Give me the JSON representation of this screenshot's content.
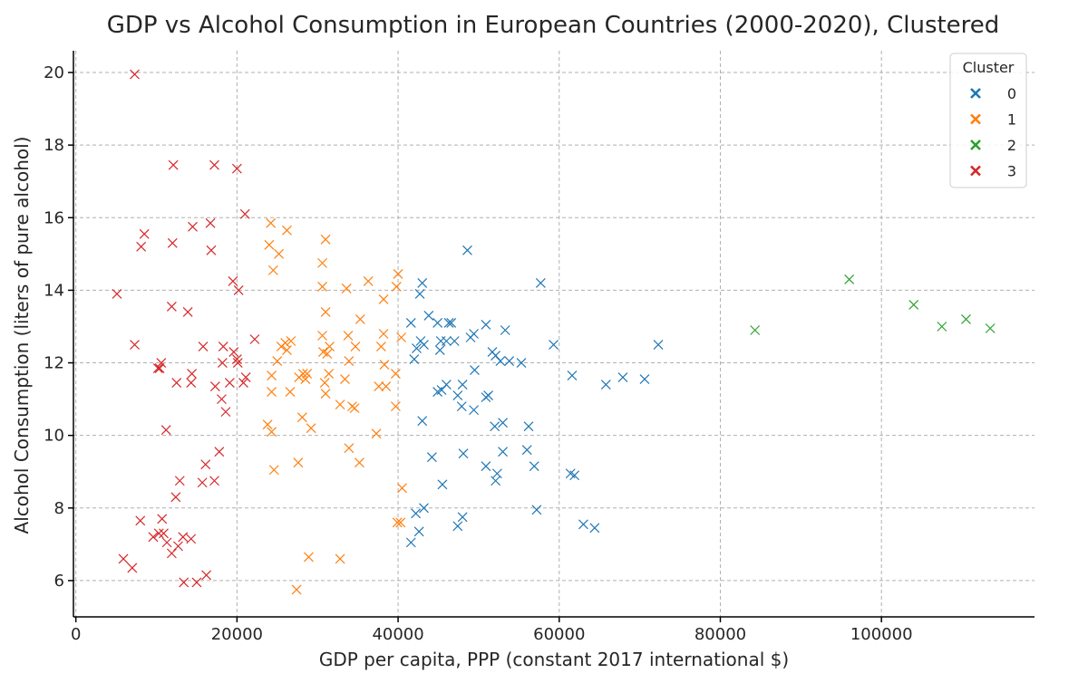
{
  "chart_data": {
    "type": "scatter",
    "title": "GDP vs Alcohol Consumption in European Countries (2000-2020), Clustered",
    "xlabel": "GDP per capita, PPP (constant 2017 international $)",
    "ylabel": "Alcohol Consumption (liters of pure alcohol)",
    "xlim": [
      -300,
      119000
    ],
    "ylim": [
      5.0,
      20.6
    ],
    "xticks": [
      0,
      20000,
      40000,
      60000,
      80000,
      100000
    ],
    "xtick_labels": [
      "0",
      "20000",
      "40000",
      "60000",
      "80000",
      "100000"
    ],
    "yticks": [
      6,
      8,
      10,
      12,
      14,
      16,
      18,
      20
    ],
    "ytick_labels": [
      "6",
      "8",
      "10",
      "12",
      "14",
      "16",
      "18",
      "20"
    ],
    "grid": true,
    "marker": "x",
    "legend": {
      "title": "Cluster",
      "position": "top-right"
    },
    "series": [
      {
        "name": "0",
        "color": "#1f77b4",
        "points": [
          [
            48600,
            15.1
          ],
          [
            57700,
            14.2
          ],
          [
            43000,
            14.2
          ],
          [
            42700,
            13.9
          ],
          [
            43800,
            13.3
          ],
          [
            41600,
            13.1
          ],
          [
            44900,
            13.1
          ],
          [
            46300,
            13.1
          ],
          [
            46600,
            13.1
          ],
          [
            50900,
            13.05
          ],
          [
            53300,
            12.9
          ],
          [
            49400,
            12.8
          ],
          [
            49000,
            12.7
          ],
          [
            42800,
            12.6
          ],
          [
            43200,
            12.5
          ],
          [
            45300,
            12.6
          ],
          [
            46000,
            12.6
          ],
          [
            47000,
            12.6
          ],
          [
            45200,
            12.35
          ],
          [
            42300,
            12.4
          ],
          [
            59300,
            12.5
          ],
          [
            72300,
            12.5
          ],
          [
            51700,
            12.3
          ],
          [
            52100,
            12.2
          ],
          [
            52700,
            12.05
          ],
          [
            53800,
            12.05
          ],
          [
            55300,
            12.0
          ],
          [
            42000,
            12.1
          ],
          [
            61600,
            11.65
          ],
          [
            67900,
            11.6
          ],
          [
            70600,
            11.55
          ],
          [
            65800,
            11.4
          ],
          [
            49500,
            11.8
          ],
          [
            46000,
            11.4
          ],
          [
            48000,
            11.4
          ],
          [
            44900,
            11.2
          ],
          [
            45400,
            11.25
          ],
          [
            47400,
            11.1
          ],
          [
            50900,
            11.05
          ],
          [
            51200,
            11.1
          ],
          [
            47900,
            10.8
          ],
          [
            49400,
            10.7
          ],
          [
            43000,
            10.4
          ],
          [
            52000,
            10.25
          ],
          [
            53000,
            10.35
          ],
          [
            56200,
            10.25
          ],
          [
            48100,
            9.5
          ],
          [
            44200,
            9.4
          ],
          [
            53000,
            9.55
          ],
          [
            56000,
            9.6
          ],
          [
            50900,
            9.15
          ],
          [
            56900,
            9.15
          ],
          [
            52300,
            8.95
          ],
          [
            52100,
            8.75
          ],
          [
            61400,
            8.95
          ],
          [
            61900,
            8.9
          ],
          [
            45500,
            8.65
          ],
          [
            43200,
            8.0
          ],
          [
            42200,
            7.85
          ],
          [
            57200,
            7.95
          ],
          [
            48000,
            7.75
          ],
          [
            47400,
            7.5
          ],
          [
            63000,
            7.55
          ],
          [
            64400,
            7.45
          ],
          [
            42600,
            7.35
          ],
          [
            41600,
            7.05
          ]
        ]
      },
      {
        "name": "1",
        "color": "#ff7f0e",
        "points": [
          [
            24200,
            15.85
          ],
          [
            26200,
            15.65
          ],
          [
            31000,
            15.4
          ],
          [
            24000,
            15.25
          ],
          [
            25200,
            15.0
          ],
          [
            30600,
            14.75
          ],
          [
            24500,
            14.55
          ],
          [
            40000,
            14.45
          ],
          [
            36300,
            14.25
          ],
          [
            30600,
            14.1
          ],
          [
            33600,
            14.05
          ],
          [
            39800,
            14.1
          ],
          [
            38200,
            13.75
          ],
          [
            31000,
            13.4
          ],
          [
            35300,
            13.2
          ],
          [
            38200,
            12.8
          ],
          [
            40400,
            12.7
          ],
          [
            30600,
            12.75
          ],
          [
            33800,
            12.75
          ],
          [
            26000,
            12.55
          ],
          [
            26700,
            12.6
          ],
          [
            25500,
            12.45
          ],
          [
            31500,
            12.45
          ],
          [
            26200,
            12.35
          ],
          [
            34700,
            12.45
          ],
          [
            30700,
            12.3
          ],
          [
            37900,
            12.45
          ],
          [
            31200,
            12.25
          ],
          [
            33900,
            12.05
          ],
          [
            25000,
            12.05
          ],
          [
            24300,
            11.65
          ],
          [
            27700,
            11.6
          ],
          [
            28200,
            11.7
          ],
          [
            28700,
            11.7
          ],
          [
            31400,
            11.7
          ],
          [
            33400,
            11.55
          ],
          [
            30900,
            11.45
          ],
          [
            28500,
            11.55
          ],
          [
            38300,
            11.95
          ],
          [
            39700,
            11.7
          ],
          [
            37600,
            11.35
          ],
          [
            38500,
            11.35
          ],
          [
            24300,
            11.2
          ],
          [
            26600,
            11.2
          ],
          [
            31000,
            11.15
          ],
          [
            32800,
            10.85
          ],
          [
            34300,
            10.8
          ],
          [
            34600,
            10.75
          ],
          [
            39700,
            10.8
          ],
          [
            28100,
            10.5
          ],
          [
            23800,
            10.3
          ],
          [
            24300,
            10.1
          ],
          [
            29200,
            10.2
          ],
          [
            33900,
            9.65
          ],
          [
            37300,
            10.05
          ],
          [
            35200,
            9.25
          ],
          [
            27600,
            9.25
          ],
          [
            24600,
            9.05
          ],
          [
            40500,
            8.55
          ],
          [
            39900,
            7.6
          ],
          [
            40300,
            7.6
          ],
          [
            28900,
            6.65
          ],
          [
            32800,
            6.6
          ],
          [
            27400,
            5.75
          ]
        ]
      },
      {
        "name": "2",
        "color": "#2ca02c",
        "points": [
          [
            96000,
            14.3
          ],
          [
            104000,
            13.6
          ],
          [
            110500,
            13.2
          ],
          [
            107500,
            13.0
          ],
          [
            113500,
            12.95
          ],
          [
            84300,
            12.9
          ]
        ]
      },
      {
        "name": "3",
        "color": "#d62728",
        "points": [
          [
            7300,
            19.95
          ],
          [
            12100,
            17.45
          ],
          [
            17200,
            17.45
          ],
          [
            20000,
            17.35
          ],
          [
            21000,
            16.1
          ],
          [
            16700,
            15.85
          ],
          [
            14500,
            15.75
          ],
          [
            8500,
            15.55
          ],
          [
            8100,
            15.2
          ],
          [
            12000,
            15.3
          ],
          [
            16800,
            15.1
          ],
          [
            19500,
            14.25
          ],
          [
            5100,
            13.9
          ],
          [
            20200,
            14.0
          ],
          [
            11900,
            13.55
          ],
          [
            13900,
            13.4
          ],
          [
            22200,
            12.65
          ],
          [
            7300,
            12.5
          ],
          [
            15800,
            12.45
          ],
          [
            18300,
            12.45
          ],
          [
            19600,
            12.3
          ],
          [
            10600,
            12.0
          ],
          [
            20100,
            12.0
          ],
          [
            20000,
            12.1
          ],
          [
            18200,
            12.0
          ],
          [
            10200,
            11.85
          ],
          [
            10400,
            11.85
          ],
          [
            14400,
            11.7
          ],
          [
            21100,
            11.6
          ],
          [
            20800,
            11.45
          ],
          [
            12500,
            11.45
          ],
          [
            14300,
            11.45
          ],
          [
            17300,
            11.35
          ],
          [
            19100,
            11.45
          ],
          [
            18100,
            11.0
          ],
          [
            18600,
            10.65
          ],
          [
            11200,
            10.15
          ],
          [
            17800,
            9.55
          ],
          [
            16100,
            9.2
          ],
          [
            15700,
            8.7
          ],
          [
            17200,
            8.75
          ],
          [
            12900,
            8.75
          ],
          [
            12400,
            8.3
          ],
          [
            10700,
            7.7
          ],
          [
            8000,
            7.65
          ],
          [
            10900,
            7.3
          ],
          [
            9600,
            7.2
          ],
          [
            10300,
            7.3
          ],
          [
            11300,
            7.05
          ],
          [
            12700,
            6.95
          ],
          [
            13300,
            7.2
          ],
          [
            14300,
            7.15
          ],
          [
            11900,
            6.75
          ],
          [
            5900,
            6.6
          ],
          [
            7000,
            6.35
          ],
          [
            13400,
            5.95
          ],
          [
            15000,
            5.95
          ],
          [
            16200,
            6.15
          ]
        ]
      }
    ]
  }
}
